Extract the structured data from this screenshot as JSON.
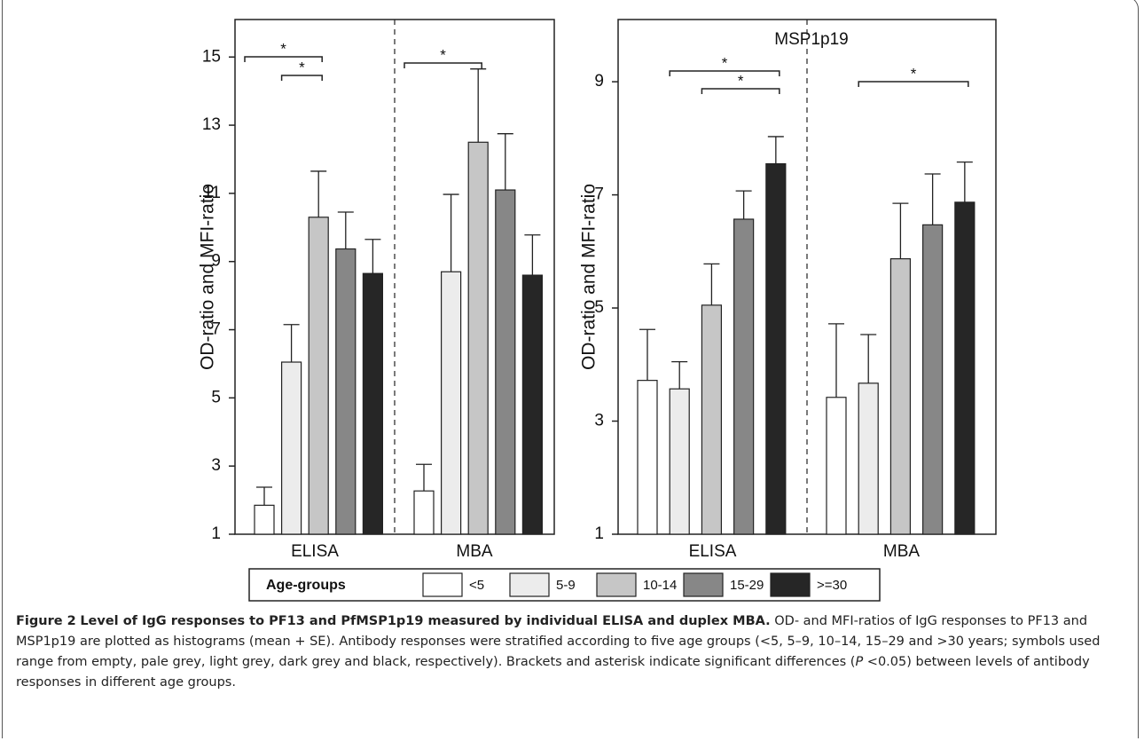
{
  "chart_data": [
    {
      "type": "bar",
      "ylabel": "OD-ratio  and  MFI-ratio",
      "categories": [
        "ELISA",
        "MBA"
      ],
      "ylim": [
        1,
        16.1
      ],
      "yticks": [
        1,
        3,
        5,
        7,
        9,
        11,
        13,
        15
      ],
      "legend_title": "Age-groups",
      "series": [
        {
          "name": "<5",
          "color": "#ffffff",
          "values": [
            1.85,
            2.27
          ],
          "errors": [
            0.53,
            0.78
          ]
        },
        {
          "name": "5-9",
          "color": "#ececec",
          "values": [
            6.05,
            8.7
          ],
          "errors": [
            1.1,
            2.27
          ]
        },
        {
          "name": "10-14",
          "color": "#c6c6c6",
          "values": [
            10.3,
            12.5
          ],
          "errors": [
            1.35,
            2.15
          ]
        },
        {
          "name": "15-29",
          "color": "#878787",
          "values": [
            9.37,
            11.1
          ],
          "errors": [
            1.08,
            1.65
          ]
        },
        {
          "name": ">=30",
          "color": "#262626",
          "values": [
            8.65,
            8.6
          ],
          "errors": [
            1.0,
            1.18
          ]
        }
      ],
      "annotations": [
        "*",
        "*",
        "*"
      ]
    },
    {
      "type": "bar",
      "title": "MSP1p19",
      "ylabel": "OD-ratio  and  MFI-ratio",
      "categories": [
        "ELISA",
        "MBA"
      ],
      "ylim": [
        1,
        10.1
      ],
      "yticks": [
        1,
        3,
        5,
        7,
        9
      ],
      "series": [
        {
          "color": "#ffffff",
          "values": [
            3.72,
            3.42
          ],
          "errors": [
            0.9,
            1.3
          ]
        },
        {
          "color": "#ececec",
          "values": [
            3.57,
            3.67
          ],
          "errors": [
            0.48,
            0.86
          ]
        },
        {
          "color": "#c6c6c6",
          "values": [
            5.05,
            5.87
          ],
          "errors": [
            0.73,
            0.98
          ]
        },
        {
          "color": "#878787",
          "values": [
            6.57,
            6.47
          ],
          "errors": [
            0.5,
            0.9
          ]
        },
        {
          "color": "#262626",
          "values": [
            7.55,
            6.87
          ],
          "errors": [
            0.48,
            0.71
          ]
        }
      ],
      "annotations": [
        "*",
        "*",
        "*"
      ]
    }
  ],
  "caption": {
    "label": "Figure 2",
    "title": "Level of IgG responses to PF13 and PfMSP1p19 measured by individual ELISA and duplex MBA.",
    "text_before": "OD- and MFI-ratios of IgG responses to PF13 and MSP1p19 are plotted as histograms (mean + SE). Antibody responses were stratified according to five age groups (<5, 5–9, 10–14, 15–29 and >30 years; symbols used range from empty, pale grey, light grey, dark grey and black, respectively). Brackets and asterisk indicate significant differences (",
    "italic": "P",
    "text_after": " <0.05) between levels of antibody responses in different age groups."
  }
}
